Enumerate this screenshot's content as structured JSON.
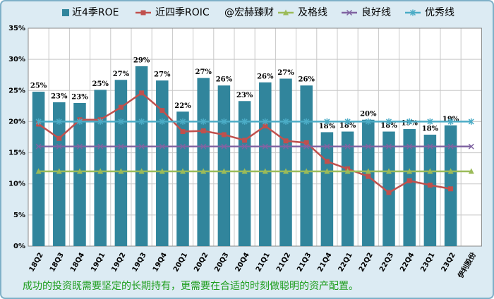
{
  "chart_data": {
    "type": "bar",
    "watermark": "@宏赫臻财",
    "footnote": "成功的投资既需要坚定的长期持有，更需要在合适的时刻做聪明的资产配置。",
    "categories": [
      "18Q2",
      "18Q3",
      "18Q4",
      "19Q1",
      "19Q2",
      "19Q3",
      "19Q4",
      "20Q1",
      "20Q2",
      "20Q3",
      "20Q4",
      "21Q1",
      "21Q2",
      "21Q3",
      "21Q4",
      "22Q1",
      "22Q2",
      "22Q3",
      "22Q4",
      "23Q1",
      "23Q2",
      "伊利股份"
    ],
    "series": [
      {
        "name": "近4季ROE",
        "kind": "bar",
        "color": "#31859c",
        "values": [
          24.8,
          23.1,
          23.0,
          25.1,
          26.7,
          28.9,
          26.6,
          21.6,
          27.0,
          25.8,
          23.3,
          26.3,
          26.9,
          25.8,
          18.3,
          18.4,
          20.3,
          18.4,
          18.8,
          17.9,
          19.4,
          null
        ],
        "value_labels": [
          "25%",
          "23%",
          "23%",
          "25%",
          "27%",
          "29%",
          "27%",
          "22%",
          "27%",
          "26%",
          "23%",
          "26%",
          "27%",
          "26%",
          "18%",
          "18%",
          "20%",
          "18%",
          "19%",
          "18%",
          "19%",
          null
        ]
      },
      {
        "name": "近四季ROIC",
        "kind": "line",
        "marker": "square",
        "color": "#c0504d",
        "values": [
          19.6,
          17.3,
          20.3,
          20.3,
          22.3,
          24.6,
          21.8,
          18.4,
          18.5,
          17.9,
          17.0,
          19.3,
          16.9,
          16.6,
          13.6,
          12.4,
          11.2,
          8.6,
          10.5,
          9.8,
          9.2,
          null
        ]
      },
      {
        "name": "及格线",
        "kind": "line",
        "marker": "triangle",
        "color": "#9bbb59",
        "values": [
          12,
          12,
          12,
          12,
          12,
          12,
          12,
          12,
          12,
          12,
          12,
          12,
          12,
          12,
          12,
          12,
          12,
          12,
          12,
          12,
          12,
          12
        ]
      },
      {
        "name": "良好线",
        "kind": "line",
        "marker": "x",
        "color": "#8064a2",
        "values": [
          16,
          16,
          16,
          16,
          16,
          16,
          16,
          16,
          16,
          16,
          16,
          16,
          16,
          16,
          16,
          16,
          16,
          16,
          16,
          16,
          16,
          16
        ]
      },
      {
        "name": "优秀线",
        "kind": "line",
        "marker": "star",
        "color": "#4bacc6",
        "values": [
          20,
          20,
          20,
          20,
          20,
          20,
          20,
          20,
          20,
          20,
          20,
          20,
          20,
          20,
          20,
          20,
          20,
          20,
          20,
          20,
          20,
          20
        ]
      }
    ],
    "ylim": [
      0,
      35
    ],
    "yticks": [
      {
        "value": 0,
        "label": "0%"
      },
      {
        "value": 5,
        "label": "5%"
      },
      {
        "value": 10,
        "label": "10%"
      },
      {
        "value": 15,
        "label": "15%"
      },
      {
        "value": 20,
        "label": "20%"
      },
      {
        "value": 25,
        "label": "25%"
      },
      {
        "value": 30,
        "label": "30%"
      },
      {
        "value": 35,
        "label": "35%"
      }
    ],
    "grid": true
  }
}
